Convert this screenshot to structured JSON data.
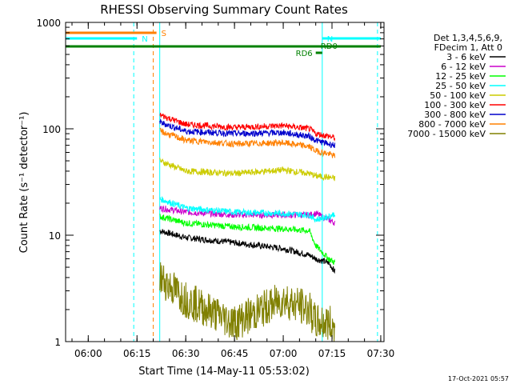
{
  "chart_data": {
    "type": "line",
    "title": "RHESSI Observing Summary Count Rates",
    "xlabel": "Start Time (14-May-11 05:53:02)",
    "ylabel": "Count Rate (s⁻¹ detector⁻¹)",
    "ylim": [
      1,
      1000
    ],
    "yscale": "log",
    "xlim": [
      "05:53:02",
      "07:31:00"
    ],
    "x_ticks": [
      "06:00",
      "06:15",
      "06:30",
      "06:45",
      "07:00",
      "07:15",
      "07:30"
    ],
    "y_ticks": [
      "1",
      "10",
      "100",
      "1000"
    ],
    "legend_position": "top-right",
    "legend_header": [
      "Det 1,3,4,5,6,9,",
      "FDecim 1, Att 0"
    ],
    "series": [
      {
        "name": "3 - 6 keV",
        "color": "#000000",
        "x": [
          "06:22",
          "06:30",
          "06:45",
          "07:00",
          "07:08",
          "07:10",
          "07:14",
          "07:16"
        ],
        "values": [
          11,
          9.5,
          8.5,
          7.5,
          6.5,
          6.0,
          5.5,
          4.5
        ]
      },
      {
        "name": "6 - 12 keV",
        "color": "#cc00cc",
        "x": [
          "06:22",
          "06:30",
          "06:45",
          "07:00",
          "07:08",
          "07:10",
          "07:14",
          "07:16"
        ],
        "values": [
          18,
          16.5,
          15.5,
          15.5,
          15.5,
          16,
          14,
          13
        ]
      },
      {
        "name": "12 - 25 keV",
        "color": "#00ff00",
        "x": [
          "06:22",
          "06:30",
          "06:45",
          "07:00",
          "07:08",
          "07:10",
          "07:14",
          "07:16"
        ],
        "values": [
          15,
          13,
          12,
          11.5,
          11,
          8,
          6,
          5.5
        ]
      },
      {
        "name": "25 - 50 keV",
        "color": "#00ffff",
        "x": [
          "06:22",
          "06:30",
          "06:45",
          "07:00",
          "07:08",
          "07:10",
          "07:14",
          "07:16"
        ],
        "values": [
          22,
          18,
          16.5,
          16,
          15.5,
          14,
          15,
          16
        ]
      },
      {
        "name": "50 - 100 keV",
        "color": "#cccc00",
        "x": [
          "06:22",
          "06:30",
          "06:45",
          "07:00",
          "07:08",
          "07:10",
          "07:14",
          "07:16"
        ],
        "values": [
          50,
          40,
          38,
          41,
          38,
          36,
          35,
          34
        ]
      },
      {
        "name": "100 - 300 keV",
        "color": "#ff0000",
        "x": [
          "06:22",
          "06:30",
          "06:45",
          "07:00",
          "07:08",
          "07:10",
          "07:14",
          "07:16"
        ],
        "values": [
          135,
          110,
          103,
          107,
          100,
          90,
          85,
          82
        ]
      },
      {
        "name": "300 - 800 keV",
        "color": "#0000cc",
        "x": [
          "06:22",
          "06:30",
          "06:45",
          "07:00",
          "07:08",
          "07:10",
          "07:14",
          "07:16"
        ],
        "values": [
          115,
          95,
          90,
          92,
          85,
          78,
          72,
          70
        ]
      },
      {
        "name": "800 - 7000 keV",
        "color": "#ff8000",
        "x": [
          "06:22",
          "06:30",
          "06:45",
          "07:00",
          "07:08",
          "07:10",
          "07:14",
          "07:16"
        ],
        "values": [
          95,
          78,
          72,
          74,
          68,
          62,
          58,
          55
        ]
      },
      {
        "name": "7000 - 15000 keV",
        "color": "#808000",
        "x": [
          "06:22",
          "06:30",
          "06:45",
          "07:00",
          "07:08",
          "07:10",
          "07:14",
          "07:16"
        ],
        "values": [
          4,
          2.5,
          1.5,
          2.5,
          2.0,
          1.5,
          1.5,
          1.3
        ]
      }
    ],
    "flags": [
      {
        "label": "S",
        "color": "#ff8000",
        "x_start": "05:53:02",
        "x_end": "06:21"
      },
      {
        "label": "N",
        "color": "#00ffff",
        "x_start": "05:53:02",
        "x_end": "06:15"
      },
      {
        "label": "N",
        "color": "#00ffff",
        "x_start": "07:12",
        "x_end": "07:30"
      },
      {
        "label": "RD0",
        "color": "#008000",
        "x_start": "05:53:02",
        "x_end": "07:30"
      },
      {
        "label": "RD6",
        "color": "#008000",
        "x_start": "07:10",
        "x_end": "07:12"
      }
    ],
    "vlines": [
      {
        "x": "05:53:02",
        "color": "#00ffff",
        "style": "solid"
      },
      {
        "x": "06:14",
        "color": "#00ffff",
        "style": "dashed"
      },
      {
        "x": "06:20",
        "color": "#ff8000",
        "style": "dashed"
      },
      {
        "x": "06:22",
        "color": "#00ffff",
        "style": "solid"
      },
      {
        "x": "07:12",
        "color": "#00ffff",
        "style": "solid"
      },
      {
        "x": "07:29",
        "color": "#00ffff",
        "style": "dashed"
      }
    ]
  },
  "timestamp": "17-Oct-2021 05:57"
}
